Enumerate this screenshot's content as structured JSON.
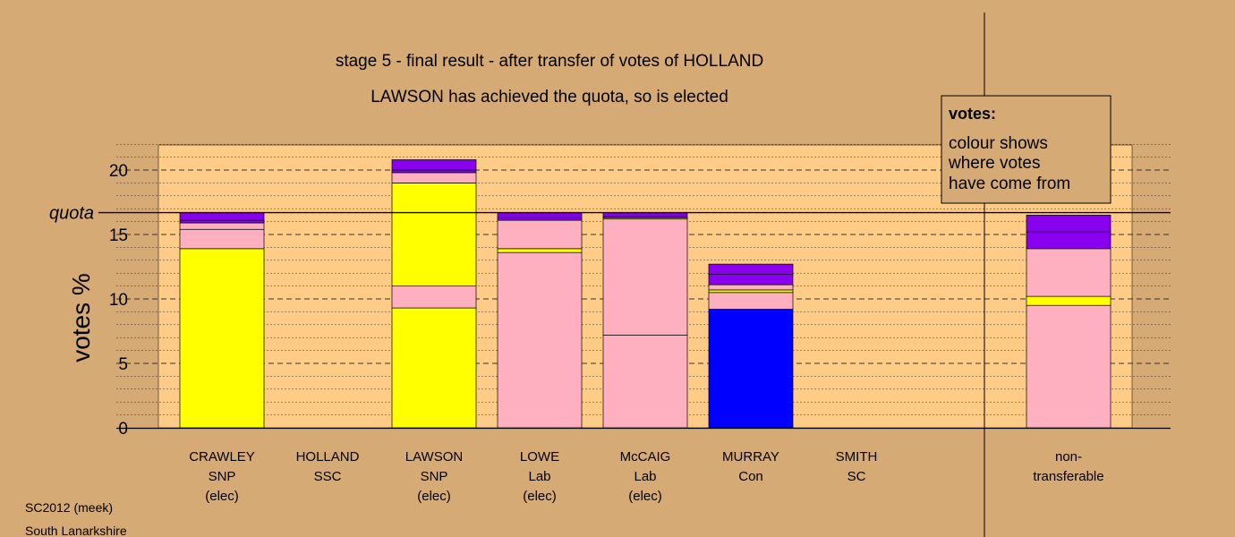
{
  "title": "stage 5 - final result - after transfer of votes of HOLLAND",
  "subtitle": "LAWSON has achieved the quota, so is elected",
  "footer": {
    "line1": "SC2012 (meek)",
    "line2": "South Lanarkshire"
  },
  "legend": {
    "title": "votes:",
    "lines": [
      "colour shows",
      "where votes",
      "have come from"
    ]
  },
  "colors": {
    "background": "#d5aa74",
    "plot": "#ffcc88",
    "SNP": "#ffff00",
    "Lab": "#ffb0c0",
    "Con": "#0000ff",
    "other": "#8800ee"
  },
  "chart_data": {
    "type": "bar",
    "stacked": true,
    "ylabel": "votes %",
    "ylim": [
      0,
      22
    ],
    "yticks": [
      0,
      5,
      10,
      15,
      20
    ],
    "quota": 16.7,
    "quota_label": "quota",
    "grid": true,
    "candidates": [
      {
        "name": "CRAWLEY",
        "party": "SNP",
        "status": "(elec)",
        "segments": [
          {
            "color": "SNP",
            "value": 13.9
          },
          {
            "color": "Lab",
            "value": 1.5
          },
          {
            "color": "Lab",
            "value": 0.5
          },
          {
            "color": "other",
            "value": 0.2
          },
          {
            "color": "other",
            "value": 0.6
          }
        ]
      },
      {
        "name": "HOLLAND",
        "party": "SSC",
        "status": "",
        "segments": []
      },
      {
        "name": "LAWSON",
        "party": "SNP",
        "status": "(elec)",
        "segments": [
          {
            "color": "SNP",
            "value": 9.3
          },
          {
            "color": "Lab",
            "value": 1.7
          },
          {
            "color": "SNP",
            "value": 8.0
          },
          {
            "color": "Lab",
            "value": 0.8
          },
          {
            "color": "other",
            "value": 0.2
          },
          {
            "color": "other",
            "value": 0.8
          }
        ]
      },
      {
        "name": "LOWE",
        "party": "Lab",
        "status": "(elec)",
        "segments": [
          {
            "color": "Lab",
            "value": 13.6
          },
          {
            "color": "SNP",
            "value": 0.3
          },
          {
            "color": "Lab",
            "value": 2.2
          },
          {
            "color": "other",
            "value": 0.2
          },
          {
            "color": "other",
            "value": 0.4
          }
        ]
      },
      {
        "name": "McCAIG",
        "party": "Lab",
        "status": "(elec)",
        "segments": [
          {
            "color": "Lab",
            "value": 7.2
          },
          {
            "color": "Lab",
            "value": 9.0
          },
          {
            "color": "SNP",
            "value": 0.1
          },
          {
            "color": "other",
            "value": 0.1
          },
          {
            "color": "other",
            "value": 0.3
          }
        ]
      },
      {
        "name": "MURRAY",
        "party": "Con",
        "status": "",
        "segments": [
          {
            "color": "Con",
            "value": 9.2
          },
          {
            "color": "Lab",
            "value": 1.3
          },
          {
            "color": "SNP",
            "value": 0.2
          },
          {
            "color": "Lab",
            "value": 0.4
          },
          {
            "color": "other",
            "value": 0.8
          },
          {
            "color": "other",
            "value": 0.8
          }
        ]
      },
      {
        "name": "SMITH",
        "party": "SC",
        "status": "",
        "segments": []
      }
    ],
    "nontransferable": {
      "label_line1": "non-",
      "label_line2": "transferable",
      "segments": [
        {
          "color": "Lab",
          "value": 9.5
        },
        {
          "color": "SNP",
          "value": 0.7
        },
        {
          "color": "Lab",
          "value": 3.7
        },
        {
          "color": "other",
          "value": 1.3
        },
        {
          "color": "other",
          "value": 1.3
        }
      ]
    }
  }
}
